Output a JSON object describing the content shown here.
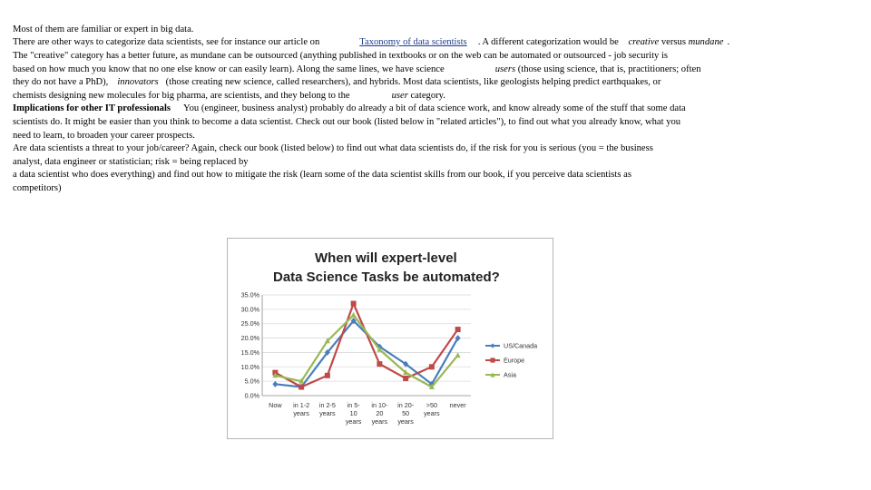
{
  "text": {
    "l1": "Most of them are familiar or expert in big data.",
    "l2a": "There are other ways to categorize data scientists, see for instance our article on",
    "l2_link": "Taxonomy of data scientists",
    "l2b": ". A different categorization would be",
    "l2_creative": "creative",
    "l2c": "versus",
    "l2_mundane": "mundane",
    "l2d": ".",
    "l3": "The \"creative\" category has a better future, as mundane can be outsourced (anything published in textbooks or on the web can be automated or outsourced - job security is",
    "l4a": "based on how much you know that no one else know or can easily learn). Along the same lines, we have science",
    "l4_users": "users",
    "l4b": "(those using science, that is, practitioners; often",
    "l5a": "they do not have a PhD),",
    "l5_innovators": "innovators",
    "l5b": "(those creating new science, called researchers), and hybrids. Most data scientists, like geologists helping predict earthquakes, or",
    "l6a": "chemists designing new molecules for big pharma, are scientists, and they belong to the",
    "l6_user": "user",
    "l6b": "category.",
    "l7_bold": "Implications for other IT professionals",
    "l7b": "You (engineer, business analyst) probably do already a bit of data science work, and know already some of the stuff that some data",
    "l8": "scientists do. It might be easier than you think to become a data scientist. Check out our book (listed below in \"related articles\"), to find out what you already know, what you",
    "l9": "need to learn, to broaden your career prospects.",
    "l10": "Are data scientists a threat to your job/career? Again, check our book (listed below) to find out what data scientists do, if the risk for you is serious (you = the business",
    "l11": "analyst, data engineer or statistician; risk = being replaced by",
    "l12": "a data scientist who does everything) and find out how to mitigate the risk (learn some of the data scientist skills from our book, if you perceive data scientists as",
    "l13": "competitors)"
  },
  "chart_data": {
    "type": "line",
    "title": "When will expert-level Data Science Tasks be automated?",
    "title_lines": [
      "When will expert-level",
      "Data Science Tasks be automated?"
    ],
    "categories": [
      [
        "Now"
      ],
      [
        "in 1-2",
        "years"
      ],
      [
        "in 2-5",
        "years"
      ],
      [
        "in 5-",
        "10",
        "years"
      ],
      [
        "in 10-",
        "20",
        "years"
      ],
      [
        "in 20-",
        "50",
        "years"
      ],
      [
        ">50",
        "years"
      ],
      [
        "never"
      ]
    ],
    "ylim": [
      0,
      35
    ],
    "yticks": [
      "0.0%",
      "5.0%",
      "10.0%",
      "15.0%",
      "20.0%",
      "25.0%",
      "30.0%",
      "35.0%"
    ],
    "grid": true,
    "legend_position": "right",
    "series": [
      {
        "name": "US/Canada",
        "color": "#4a7ebb",
        "marker": "diamond",
        "values": [
          4,
          3,
          15,
          26,
          17,
          11,
          4,
          20
        ]
      },
      {
        "name": "Europe",
        "color": "#be4b48",
        "marker": "square",
        "values": [
          8,
          3,
          7,
          32,
          11,
          6,
          10,
          23
        ]
      },
      {
        "name": "Asia",
        "color": "#98b954",
        "marker": "triangle",
        "values": [
          7,
          5,
          19,
          28,
          16,
          8,
          3,
          14
        ]
      }
    ]
  }
}
